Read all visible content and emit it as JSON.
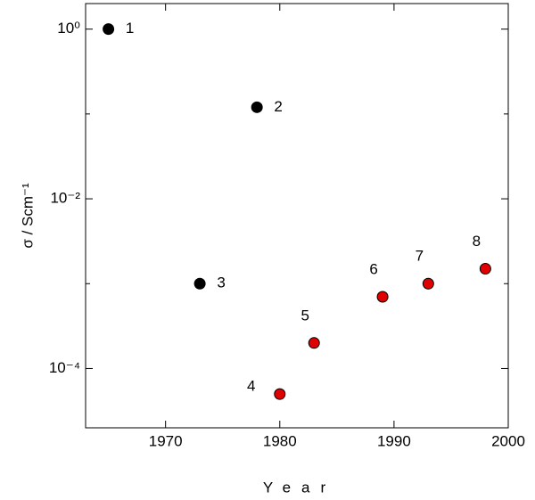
{
  "chart_data": {
    "type": "scatter",
    "x_label": "Year",
    "y_label": "σ / Scm⁻¹",
    "x": [
      1965,
      1978,
      1973,
      1980,
      1983,
      1989,
      1993,
      1998
    ],
    "values": [
      1,
      0.12,
      0.001,
      5e-05,
      0.0002,
      0.0007,
      0.001,
      0.0015
    ],
    "point_labels": [
      "1",
      "2",
      "3",
      "4",
      "5",
      "6",
      "7",
      "8"
    ],
    "colors": [
      "#000000",
      "#000000",
      "#000000",
      "#e00000",
      "#e00000",
      "#e00000",
      "#e00000",
      "#e00000"
    ],
    "xlim": [
      1963,
      2000
    ],
    "xticks": [
      1970,
      1980,
      1990,
      2000
    ],
    "ylim": [
      2e-05,
      2
    ],
    "log_y": true,
    "yticks": [
      {
        "value": 1,
        "label": "10⁰"
      },
      {
        "value": 0.01,
        "label": "10⁻²"
      },
      {
        "value": 0.0001,
        "label": "10⁻⁴"
      }
    ],
    "yminorticks": [
      0.1,
      0.001
    ]
  }
}
